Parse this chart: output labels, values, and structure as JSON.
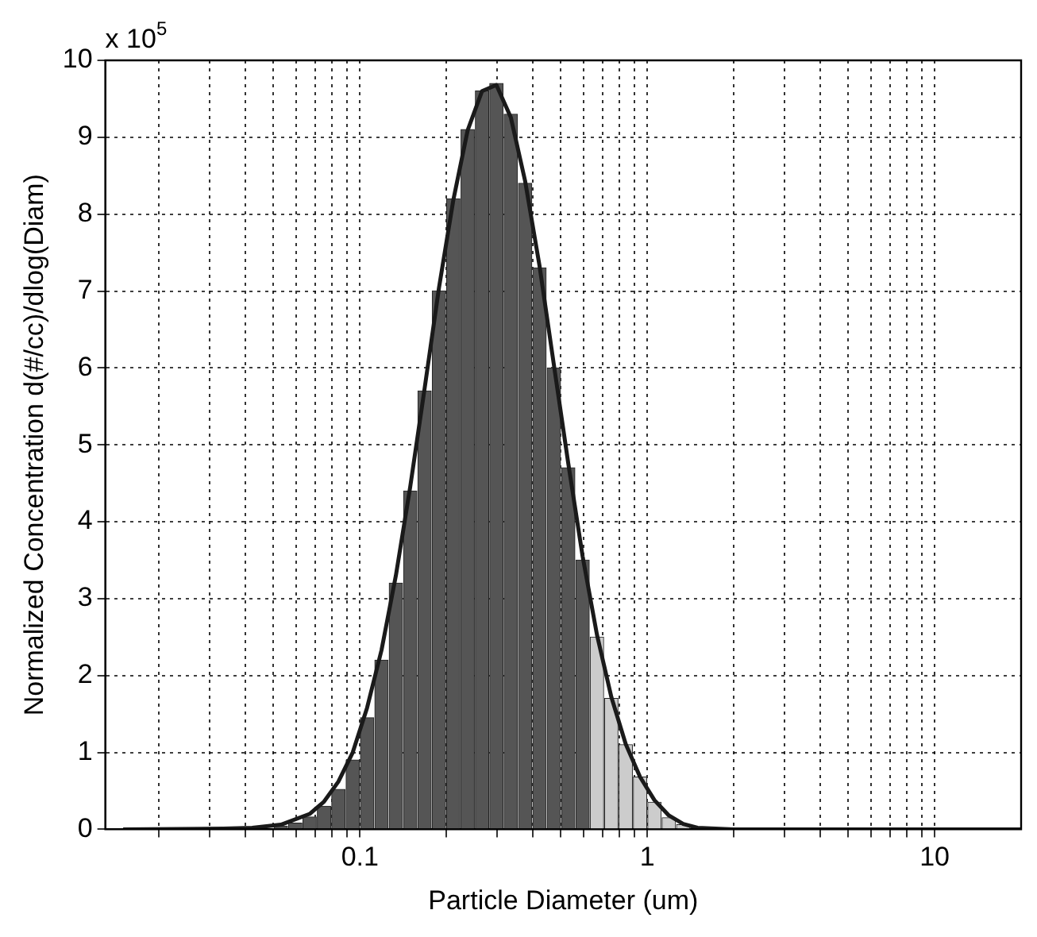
{
  "chart_data": {
    "type": "histogram",
    "xlabel": "Particle Diameter (um)",
    "ylabel": "Normalized Concentration d(#/cc)/dlog(Diam)",
    "annotations": [
      "x 10$^{5}$"
    ],
    "bins": [
      0.01585,
      0.01778,
      0.01995,
      0.02239,
      0.02512,
      0.02818,
      0.03162,
      0.03548,
      0.03981,
      0.04467,
      0.05012,
      0.05623,
      0.0631,
      0.07079,
      0.07943,
      0.08913,
      0.1,
      0.1122,
      0.1259,
      0.1413,
      0.1585,
      0.1778,
      0.1995,
      0.2239,
      0.2512,
      0.2818,
      0.3162,
      0.3548,
      0.3981,
      0.4467,
      0.5012,
      0.5623,
      0.631,
      0.7079,
      0.7943,
      0.8913,
      1,
      1.122,
      1.259,
      1.413,
      1.585,
      1.778,
      1.995
    ],
    "values": [
      0,
      0,
      0,
      0,
      0,
      0,
      0,
      0.01,
      0.01,
      null,
      0.04,
      0.08,
      0.16,
      0.3,
      0.52,
      0.9,
      1.45,
      2.2,
      3.2,
      4.4,
      5.7,
      7.0,
      8.2,
      9.1,
      9.6,
      9.7,
      9.3,
      8.4,
      7.3,
      6.0,
      4.7,
      3.5,
      2.5,
      1.7,
      1.1,
      0.68,
      0.35,
      0.15,
      0.06,
      null,
      0,
      0
    ],
    "colors": [
      "#555555",
      "#555555",
      "#555555",
      "#555555",
      "#555555",
      "#555555",
      "#555555",
      "#555555",
      "#555555",
      "#555555",
      "#555555",
      "#555555",
      "#555555",
      "#555555",
      "#555555",
      "#555555",
      "#555555",
      "#555555",
      "#555555",
      "#555555",
      "#555555",
      "#555555",
      "#555555",
      "#555555",
      "#555555",
      "#555555",
      "#555555",
      "#555555",
      "#555555",
      "#555555",
      "#555555",
      "#555555",
      "#cccccc",
      "#cccccc",
      "#cccccc",
      "#cccccc",
      "#cccccc",
      "#cccccc",
      "#cccccc",
      "#cccccc",
      "#cccccc",
      "#cccccc"
    ],
    "series": [
      {
        "type": "line",
        "color": "#1a1a1a",
        "x": [
          0.015,
          0.0335,
          0.04217,
          0.05309,
          0.06683,
          0.07499,
          0.08414,
          0.09441,
          0.1059,
          0.1189,
          0.1334,
          0.1496,
          0.1679,
          0.1884,
          0.2113,
          0.2371,
          0.2661,
          0.2985,
          0.335,
          0.3758,
          0.4217,
          0.4732,
          0.5309,
          0.5957,
          0.6683,
          0.7499,
          0.8414,
          0.9441,
          1.059,
          1.189,
          1.334,
          1.496,
          2,
          20
        ],
        "values": [
          0,
          0.01,
          0.02,
          0.06,
          0.2,
          0.36,
          0.62,
          1.0,
          1.58,
          2.33,
          3.3,
          4.45,
          5.73,
          7.04,
          8.18,
          9.09,
          9.6,
          9.68,
          9.26,
          8.43,
          7.33,
          6.04,
          4.76,
          3.55,
          2.53,
          1.72,
          1.11,
          0.68,
          0.38,
          0.18,
          0.07,
          0.02,
          0,
          0
        ]
      }
    ],
    "xlim": [
      0.013,
      20
    ],
    "ylim": [
      0,
      10
    ],
    "xticks": [
      {
        "value": 0.02,
        "label": null
      },
      {
        "value": 0.03,
        "label": null
      },
      {
        "value": 0.04,
        "label": null
      },
      {
        "value": 0.05,
        "label": null
      },
      {
        "value": 0.06,
        "label": null
      },
      {
        "value": 0.07,
        "label": null
      },
      {
        "value": 0.08,
        "label": null
      },
      {
        "value": 0.09,
        "label": null
      },
      0.1,
      {
        "value": 0.2,
        "label": null
      },
      {
        "value": 0.3,
        "label": null
      },
      {
        "value": 0.4,
        "label": null
      },
      {
        "value": 0.5,
        "label": null
      },
      {
        "value": 0.6,
        "label": null
      },
      {
        "value": 0.7,
        "label": null
      },
      {
        "value": 0.8,
        "label": null
      },
      {
        "value": 0.9,
        "label": null
      },
      1,
      {
        "value": 2,
        "label": null
      },
      {
        "value": 3,
        "label": null
      },
      {
        "value": 4,
        "label": null
      },
      {
        "value": 5,
        "label": null
      },
      {
        "value": 6,
        "label": null
      },
      {
        "value": 7,
        "label": null
      },
      {
        "value": 8,
        "label": null
      },
      {
        "value": 9,
        "label": null
      },
      10
    ],
    "yticks": [
      0,
      1,
      2,
      3,
      4,
      5,
      6,
      7,
      8,
      9,
      10
    ],
    "log": "x",
    "grid": true,
    "legend": false
  }
}
